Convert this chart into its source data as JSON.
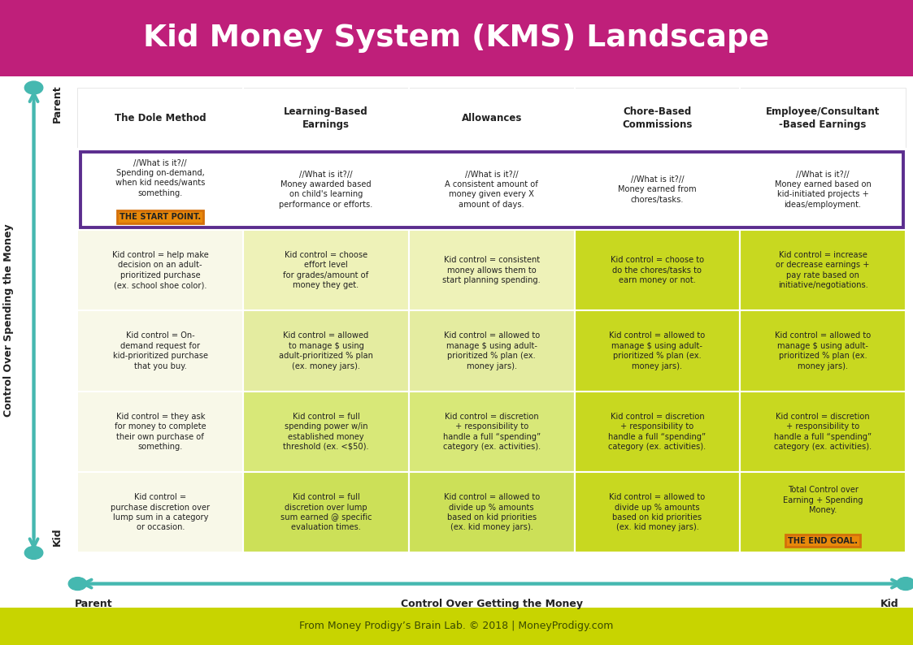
{
  "title": "Kid Money System (KMS) Landscape",
  "title_bg": "#bf1f7a",
  "title_color": "#ffffff",
  "footer_text": "From Money Prodigy’s Brain Lab. © 2018 | MoneyProdigy.com",
  "footer_bg": "#c8d400",
  "footer_color": "#3a4a00",
  "col_headers": [
    "The Dole Method",
    "Learning-Based\nEarnings",
    "Allowances",
    "Chore-Based\nCommissions",
    "Employee/Consultant\n-Based Earnings"
  ],
  "y_axis_label": "Control Over Spending the Money",
  "x_axis_label": "Control Over Getting the Money",
  "y_axis_top": "Parent",
  "y_axis_bottom": "Kid",
  "x_axis_left": "Parent",
  "x_axis_right": "Kid",
  "arrow_color": "#45b8b0",
  "purple_border_color": "#5b2d8e",
  "orange_border_color": "#d4700a",
  "orange_fill_color": "#e8890a",
  "cells": [
    [
      "//What is it?//\nSpending on-demand,\nwhen kid needs/wants\nsomething.",
      "//What is it?//\nMoney awarded based\non child's learning\nperformance or efforts.",
      "//What is it?//\nA consistent amount of\nmoney given every X\namount of days.",
      "//What is it?//\nMoney earned from\nchores/tasks.",
      "//What is it?//\nMoney earned based on\nkid-initiated projects +\nideas/employment."
    ],
    [
      "Kid control = help make\ndecision on an adult-\nprioritized purchase\n(ex. school shoe color).",
      "Kid control = choose\neffort level\nfor grades/amount of\nmoney they get.",
      "Kid control = consistent\nmoney allows them to\nstart planning spending.",
      "Kid control = choose to\ndo the chores/tasks to\nearn money or not.",
      "Kid control = increase\nor decrease earnings +\npay rate based on\ninitiative/negotiations."
    ],
    [
      "Kid control = On-\ndemand request for\nkid-prioritized purchase\nthat you buy.",
      "Kid control = allowed\nto manage $ using\nadult-prioritized % plan\n(ex. money jars).",
      "Kid control = allowed to\nmanage $ using adult-\nprioritized % plan (ex.\nmoney jars).",
      "Kid control = allowed to\nmanage $ using adult-\nprioritized % plan (ex.\nmoney jars).",
      "Kid control = allowed to\nmanage $ using adult-\nprioritized % plan (ex.\nmoney jars)."
    ],
    [
      "Kid control = they ask\nfor money to complete\ntheir own purchase of\nsomething.",
      "Kid control = full\nspending power w/in\nestablished money\nthreshold (ex. <$50).",
      "Kid control = discretion\n+ responsibility to\nhandle a full “spending”\ncategory (ex. activities).",
      "Kid control = discretion\n+ responsibility to\nhandle a full “spending”\ncategory (ex. activities).",
      "Kid control = discretion\n+ responsibility to\nhandle a full “spending”\ncategory (ex. activities)."
    ],
    [
      "Kid control =\npurchase discretion over\nlump sum in a category\nor occasion.",
      "Kid control = full\ndiscretion over lump\nsum earned @ specific\nevaluation times.",
      "Kid control = allowed to\ndivide up % amounts\nbased on kid priorities\n(ex. kid money jars).",
      "Kid control = allowed to\ndivide up % amounts\nbased on kid priorities\n(ex. kid money jars).",
      "Total Control over\nEarning + Spending\nMoney."
    ]
  ],
  "start_label": "THE START POINT.",
  "end_label": "THE END GOAL.",
  "cell_colors": [
    [
      "#ffffff",
      "#ffffff",
      "#ffffff",
      "#ffffff",
      "#ffffff"
    ],
    [
      "#f8f8e8",
      "#eef2b8",
      "#eef2b8",
      "#c8d820",
      "#c8d820"
    ],
    [
      "#f8f8e8",
      "#e4ecA0",
      "#e4eca0",
      "#c8d820",
      "#c8d820"
    ],
    [
      "#f8f8e8",
      "#d8e878",
      "#d8e878",
      "#c8d820",
      "#c8d820"
    ],
    [
      "#f8f8e8",
      "#cce058",
      "#cce058",
      "#c8d820",
      "#c8d820"
    ]
  ]
}
